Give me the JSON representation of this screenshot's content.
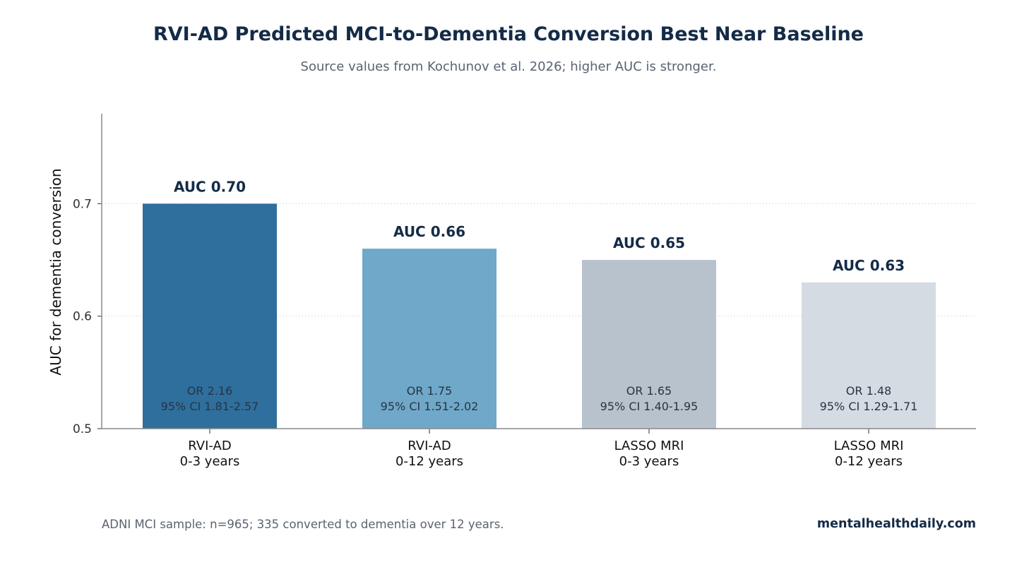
{
  "chart_data": {
    "type": "bar",
    "title": "RVI-AD Predicted MCI-to-Dementia Conversion Best Near Baseline",
    "subtitle": "Source values from Kochunov et al. 2026; higher AUC is stronger.",
    "ylabel": "AUC for dementia conversion",
    "ylim": [
      0.5,
      0.78
    ],
    "yticks": [
      "0.5",
      "0.6",
      "0.7"
    ],
    "grid": "horizontal dotted",
    "categories": [
      [
        "RVI-AD",
        "0-3 years"
      ],
      [
        "RVI-AD",
        "0-12 years"
      ],
      [
        "LASSO MRI",
        "0-3 years"
      ],
      [
        "LASSO MRI",
        "0-12 years"
      ]
    ],
    "values": [
      0.7,
      0.66,
      0.65,
      0.63
    ],
    "value_labels": [
      "AUC 0.70",
      "AUC 0.66",
      "AUC 0.65",
      "AUC 0.63"
    ],
    "or_labels": [
      "OR 2.16",
      "OR 1.75",
      "OR 1.65",
      "OR 1.48"
    ],
    "ci_labels": [
      "95% CI 1.81-2.57",
      "95% CI 1.51-2.02",
      "95% CI 1.40-1.95",
      "95% CI 1.29-1.71"
    ],
    "colors": [
      "#2e6f9e",
      "#6fa8c9",
      "#b8c2cc",
      "#d4dbe3"
    ]
  },
  "footer": {
    "note": "ADNI MCI sample: n=965; 335 converted to dementia over 12 years.",
    "source": "mentalhealthdaily.com"
  }
}
